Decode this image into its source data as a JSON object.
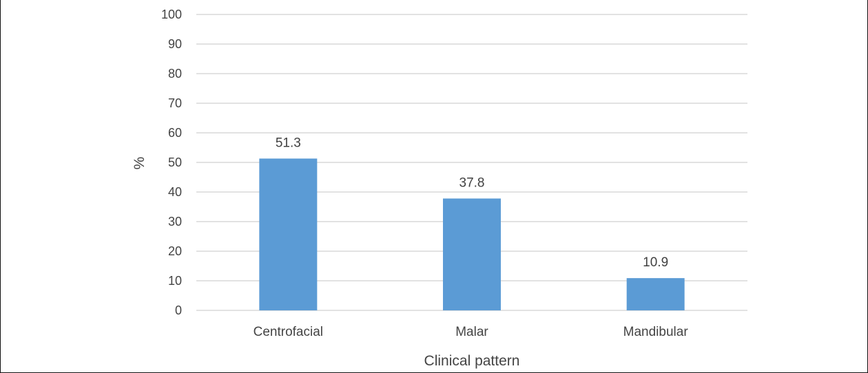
{
  "chart_data": {
    "type": "bar",
    "categories": [
      "Centrofacial",
      "Malar",
      "Mandibular"
    ],
    "values": [
      51.3,
      37.8,
      10.9
    ],
    "data_labels": [
      "51.3",
      "37.8",
      "10.9"
    ],
    "xlabel": "Clinical pattern",
    "ylabel": "%",
    "ylim": [
      0,
      100
    ],
    "yticks": [
      "0",
      "10",
      "20",
      "30",
      "40",
      "50",
      "60",
      "70",
      "80",
      "90",
      "100"
    ],
    "ytick_values": [
      0,
      10,
      20,
      30,
      40,
      50,
      60,
      70,
      80,
      90,
      100
    ],
    "grid": true,
    "legend": "none",
    "bar_color": "#5b9bd5",
    "grid_color": "#d9d9d9"
  }
}
